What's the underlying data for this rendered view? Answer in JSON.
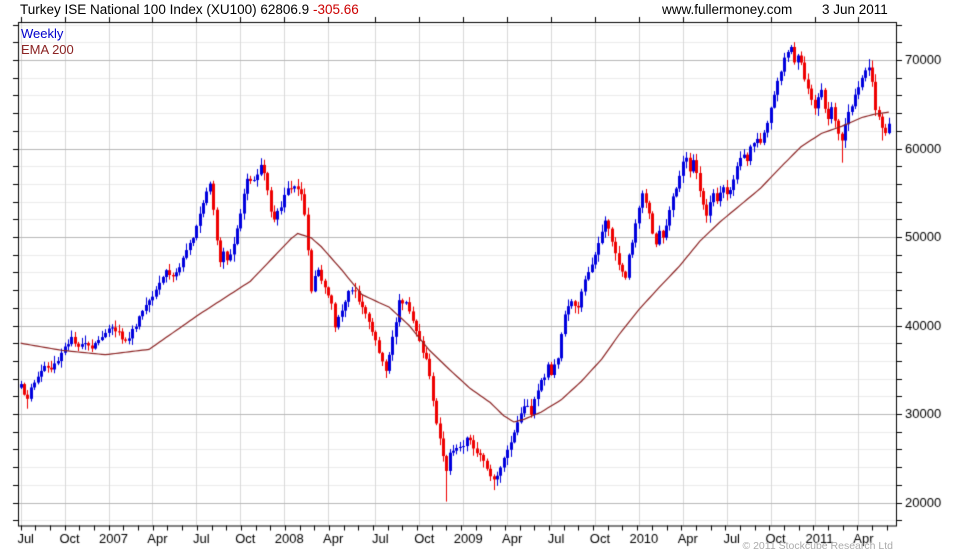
{
  "header": {
    "title": "Turkey ISE National 100 Index (XU100)",
    "last_price": "62806.9",
    "change": "-305.66",
    "site": "www.fullermoney.com",
    "date": "3 Jun 2011"
  },
  "legend": {
    "series": "Weekly",
    "ema": "EMA 200"
  },
  "footer": {
    "copyright": "© 2011 Stockcube Research Ltd"
  },
  "chart_data": {
    "type": "candlestick",
    "interval": "weekly",
    "title": "Turkey ISE National 100 Index (XU100)",
    "weeks": 258,
    "ylim": [
      17200,
      74300
    ],
    "y_ticks": [
      20000,
      30000,
      40000,
      50000,
      60000,
      70000
    ],
    "y_minor_step": 2000,
    "weeks_per_month": 4.345,
    "x_quarter_weeks": [
      0,
      13,
      26,
      39,
      52,
      65,
      78,
      91,
      105,
      118,
      131,
      144,
      157,
      170,
      183,
      196,
      209,
      222,
      235,
      248
    ],
    "x_labels": [
      "Jul",
      "Oct",
      "2007",
      "Apr",
      "Jul",
      "Oct",
      "2008",
      "Apr",
      "Jul",
      "Oct",
      "2009",
      "Apr",
      "Jul",
      "Oct",
      "2010",
      "Apr",
      "Jul",
      "Oct",
      "2011",
      "Apr"
    ],
    "close_anchors": [
      [
        0,
        33600
      ],
      [
        1,
        32400
      ],
      [
        2,
        31500
      ],
      [
        3,
        32900
      ],
      [
        5,
        34300
      ],
      [
        7,
        35400
      ],
      [
        9,
        35000
      ],
      [
        11,
        36200
      ],
      [
        13,
        37700
      ],
      [
        15,
        38500
      ],
      [
        17,
        37300
      ],
      [
        19,
        38300
      ],
      [
        21,
        37600
      ],
      [
        23,
        38500
      ],
      [
        25,
        39000
      ],
      [
        27,
        40000
      ],
      [
        29,
        39200
      ],
      [
        31,
        38100
      ],
      [
        33,
        39400
      ],
      [
        35,
        41000
      ],
      [
        37,
        42400
      ],
      [
        39,
        43600
      ],
      [
        41,
        45000
      ],
      [
        43,
        46200
      ],
      [
        45,
        45500
      ],
      [
        47,
        46600
      ],
      [
        49,
        48200
      ],
      [
        51,
        50200
      ],
      [
        53,
        52800
      ],
      [
        55,
        55400
      ],
      [
        56,
        56200
      ],
      [
        57,
        53200
      ],
      [
        58,
        49800
      ],
      [
        59,
        47400
      ],
      [
        60,
        48600
      ],
      [
        61,
        47200
      ],
      [
        62,
        48000
      ],
      [
        63,
        49200
      ],
      [
        65,
        52600
      ],
      [
        66,
        55200
      ],
      [
        67,
        56800
      ],
      [
        69,
        56200
      ],
      [
        71,
        58300
      ],
      [
        72,
        57200
      ],
      [
        73,
        55200
      ],
      [
        74,
        52800
      ],
      [
        75,
        51800
      ],
      [
        77,
        53600
      ],
      [
        79,
        55400
      ],
      [
        81,
        55800
      ],
      [
        83,
        54600
      ],
      [
        84,
        52200
      ],
      [
        85,
        48400
      ],
      [
        86,
        43800
      ],
      [
        87,
        45600
      ],
      [
        88,
        46400
      ],
      [
        90,
        44400
      ],
      [
        92,
        42200
      ],
      [
        93,
        39900
      ],
      [
        95,
        41900
      ],
      [
        97,
        43900
      ],
      [
        99,
        43600
      ],
      [
        101,
        42400
      ],
      [
        103,
        40300
      ],
      [
        105,
        38200
      ],
      [
        107,
        35800
      ],
      [
        108,
        34900
      ],
      [
        110,
        38600
      ],
      [
        112,
        42700
      ],
      [
        114,
        42900
      ],
      [
        116,
        40400
      ],
      [
        118,
        38200
      ],
      [
        120,
        36100
      ],
      [
        121,
        34300
      ],
      [
        122,
        31300
      ],
      [
        123,
        29100
      ],
      [
        124,
        27300
      ],
      [
        125,
        25300
      ],
      [
        126,
        23300
      ],
      [
        127,
        25900
      ],
      [
        129,
        26200
      ],
      [
        131,
        26100
      ],
      [
        132,
        27400
      ],
      [
        134,
        26200
      ],
      [
        136,
        25100
      ],
      [
        138,
        23900
      ],
      [
        140,
        22600
      ],
      [
        141,
        23300
      ],
      [
        143,
        24900
      ],
      [
        145,
        26800
      ],
      [
        146,
        28200
      ],
      [
        147,
        29000
      ],
      [
        148,
        30200
      ],
      [
        149,
        31200
      ],
      [
        151,
        30200
      ],
      [
        153,
        32800
      ],
      [
        155,
        34400
      ],
      [
        156,
        35800
      ],
      [
        157,
        34600
      ],
      [
        159,
        36400
      ],
      [
        160,
        38800
      ],
      [
        161,
        41400
      ],
      [
        163,
        42500
      ],
      [
        165,
        42300
      ],
      [
        167,
        45000
      ],
      [
        169,
        46800
      ],
      [
        171,
        49200
      ],
      [
        172,
        50900
      ],
      [
        173,
        51600
      ],
      [
        175,
        49700
      ],
      [
        176,
        48300
      ],
      [
        178,
        46100
      ],
      [
        179,
        45700
      ],
      [
        180,
        47900
      ],
      [
        181,
        49400
      ],
      [
        182,
        51200
      ],
      [
        183,
        53400
      ],
      [
        184,
        54900
      ],
      [
        185,
        54200
      ],
      [
        186,
        52400
      ],
      [
        187,
        50600
      ],
      [
        188,
        49200
      ],
      [
        189,
        50800
      ],
      [
        190,
        49800
      ],
      [
        191,
        51600
      ],
      [
        192,
        53200
      ],
      [
        193,
        54800
      ],
      [
        194,
        55600
      ],
      [
        195,
        56800
      ],
      [
        196,
        58200
      ],
      [
        197,
        59000
      ],
      [
        198,
        57600
      ],
      [
        199,
        58800
      ],
      [
        200,
        57000
      ],
      [
        201,
        55200
      ],
      [
        202,
        53400
      ],
      [
        203,
        52600
      ],
      [
        204,
        54000
      ],
      [
        205,
        54800
      ],
      [
        206,
        54200
      ],
      [
        207,
        55000
      ],
      [
        208,
        55600
      ],
      [
        209,
        54600
      ],
      [
        210,
        55400
      ],
      [
        211,
        56600
      ],
      [
        212,
        57800
      ],
      [
        213,
        58600
      ],
      [
        214,
        59200
      ],
      [
        215,
        58400
      ],
      [
        216,
        60000
      ],
      [
        217,
        60800
      ],
      [
        218,
        61200
      ],
      [
        219,
        60400
      ],
      [
        220,
        61800
      ],
      [
        221,
        63000
      ],
      [
        222,
        64300
      ],
      [
        223,
        66000
      ],
      [
        224,
        67500
      ],
      [
        225,
        69000
      ],
      [
        226,
        70200
      ],
      [
        227,
        70800
      ],
      [
        228,
        71200
      ],
      [
        229,
        69800
      ],
      [
        230,
        70600
      ],
      [
        231,
        69400
      ],
      [
        232,
        68000
      ],
      [
        233,
        66600
      ],
      [
        234,
        65400
      ],
      [
        235,
        64600
      ],
      [
        236,
        65800
      ],
      [
        237,
        66400
      ],
      [
        238,
        64800
      ],
      [
        239,
        63600
      ],
      [
        240,
        64400
      ],
      [
        241,
        62800
      ],
      [
        242,
        61600
      ],
      [
        243,
        60600
      ],
      [
        244,
        62800
      ],
      [
        245,
        63800
      ],
      [
        246,
        65000
      ],
      [
        247,
        66200
      ],
      [
        248,
        67200
      ],
      [
        249,
        68000
      ],
      [
        250,
        68800
      ],
      [
        251,
        69200
      ],
      [
        252,
        67200
      ],
      [
        253,
        64400
      ],
      [
        254,
        63400
      ],
      [
        255,
        62200
      ],
      [
        256,
        61900
      ],
      [
        257,
        62800
      ]
    ],
    "ema_anchors": [
      [
        0,
        38000
      ],
      [
        12,
        37200
      ],
      [
        25,
        36700
      ],
      [
        38,
        37300
      ],
      [
        53,
        41300
      ],
      [
        68,
        45000
      ],
      [
        74,
        47400
      ],
      [
        80,
        49800
      ],
      [
        82,
        50400
      ],
      [
        86,
        49900
      ],
      [
        89,
        48900
      ],
      [
        95,
        46300
      ],
      [
        101,
        43500
      ],
      [
        106,
        42600
      ],
      [
        109,
        42100
      ],
      [
        115,
        40000
      ],
      [
        121,
        37200
      ],
      [
        127,
        35000
      ],
      [
        133,
        32900
      ],
      [
        139,
        31300
      ],
      [
        143,
        29800
      ],
      [
        146,
        29100
      ],
      [
        149,
        29400
      ],
      [
        154,
        30200
      ],
      [
        160,
        31600
      ],
      [
        166,
        33700
      ],
      [
        172,
        36200
      ],
      [
        177,
        38900
      ],
      [
        183,
        41800
      ],
      [
        189,
        44300
      ],
      [
        195,
        46700
      ],
      [
        201,
        49500
      ],
      [
        207,
        51700
      ],
      [
        213,
        53600
      ],
      [
        219,
        55500
      ],
      [
        225,
        57900
      ],
      [
        231,
        60200
      ],
      [
        237,
        61700
      ],
      [
        243,
        62500
      ],
      [
        249,
        63500
      ],
      [
        253,
        63900
      ],
      [
        257,
        64100
      ]
    ],
    "wick_low_overrides": [
      [
        2,
        30600
      ],
      [
        126,
        20100
      ],
      [
        140,
        21400
      ],
      [
        243,
        58400
      ],
      [
        255,
        60900
      ]
    ],
    "wick_high_overrides": [
      [
        71,
        58900
      ],
      [
        197,
        59600
      ],
      [
        228,
        71700
      ],
      [
        251,
        70100
      ]
    ],
    "colors": {
      "up": "#0000dd",
      "down": "#ee0000",
      "ema": "#8b2323",
      "grid_minor": "#ebebeb",
      "grid_vertical": "#d9d9d9",
      "grid_major": "#b8b8b8",
      "frame": "#000000",
      "axis_text": "#000000",
      "change_text": "#cc0000"
    }
  }
}
